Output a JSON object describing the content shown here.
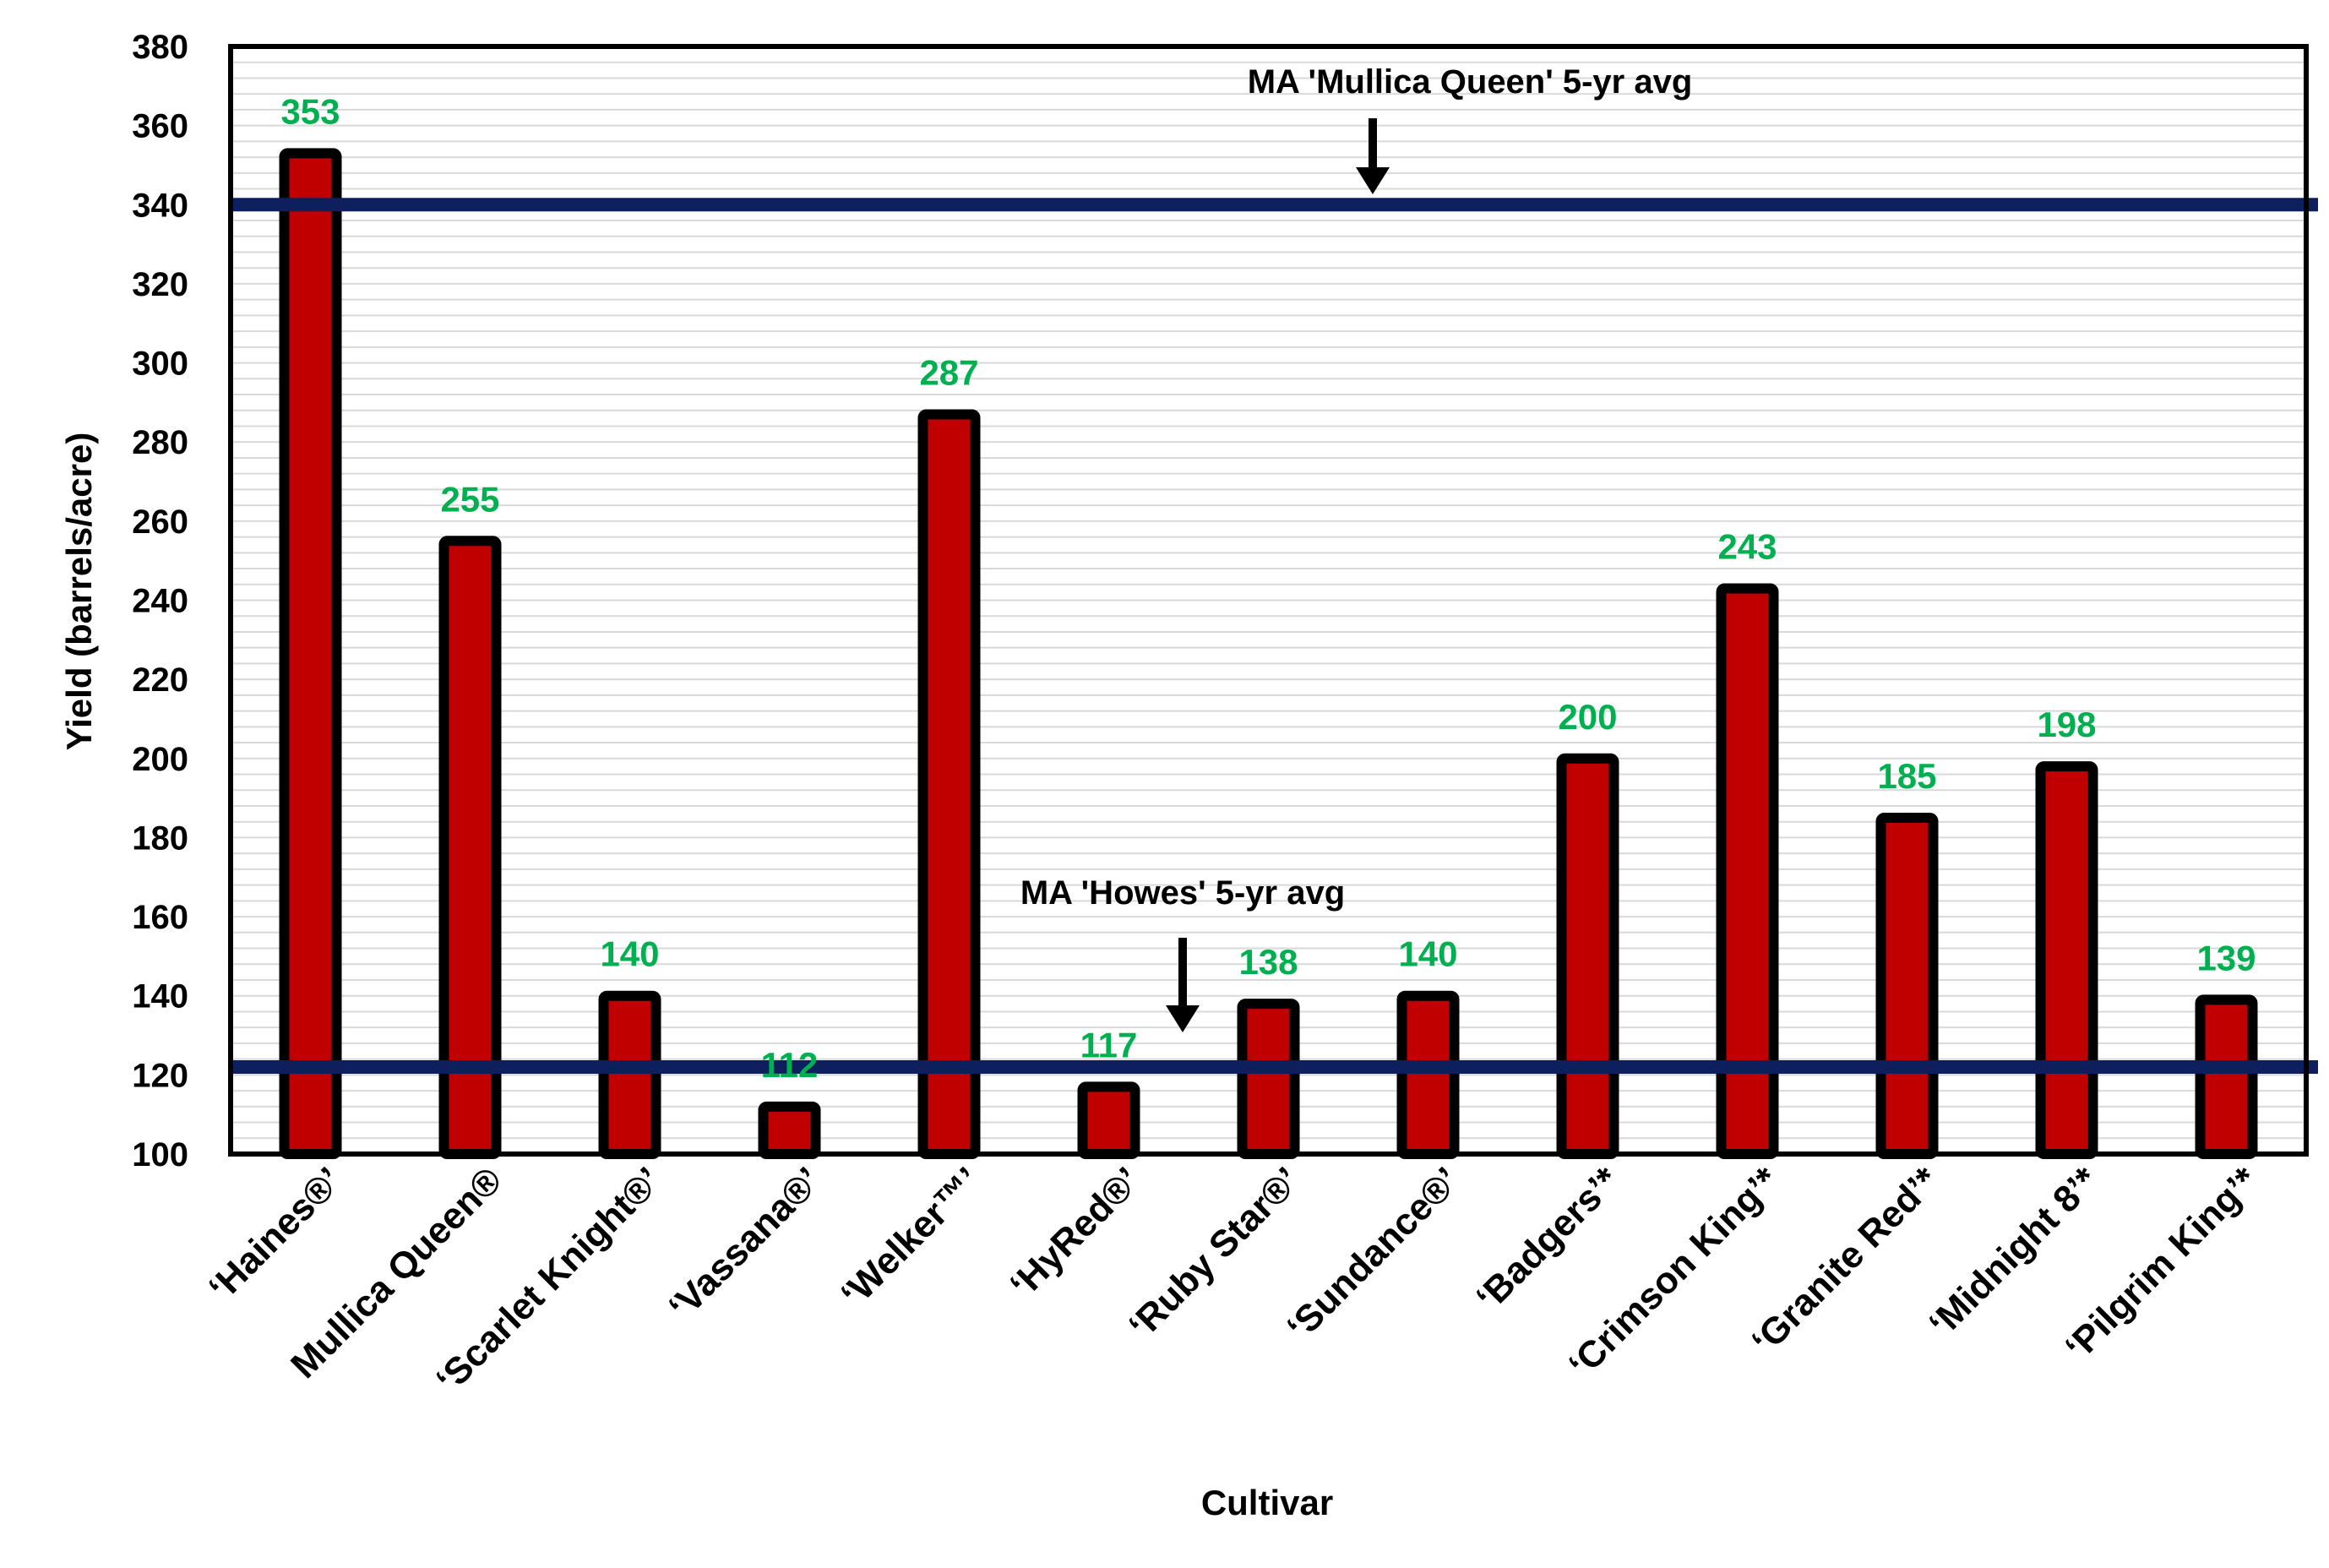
{
  "chart_data": {
    "type": "bar",
    "xlabel": "Cultivar",
    "ylabel": "Yield (barrels/acre)",
    "ylim": [
      100,
      380
    ],
    "yticks": [
      100,
      120,
      140,
      160,
      180,
      200,
      220,
      240,
      260,
      280,
      300,
      320,
      340,
      360,
      380
    ],
    "grid": true,
    "categories": [
      "‘Haines®’",
      "Mullica Queen®",
      "‘Scarlet Knight®’",
      "‘Vassana®’",
      "‘Welker™’",
      "‘HyRed®’",
      "‘Ruby Star®’",
      "‘Sundance®’",
      "‘Badgers’*",
      "‘Crimson King’*",
      "‘Granite Red’*",
      "‘Midnight 8’*",
      "‘Pilgrim King’*"
    ],
    "values": [
      353,
      255,
      140,
      112,
      287,
      117,
      138,
      140,
      200,
      243,
      185,
      198,
      139
    ],
    "data_labels": [
      "353",
      "255",
      "140",
      "112",
      "287",
      "117",
      "138",
      "140",
      "200",
      "243",
      "185",
      "198",
      "139"
    ],
    "reference_lines": [
      {
        "label": "MA 'Mullica Queen' 5-yr avg",
        "value": 340
      },
      {
        "label": "MA 'Howes' 5-yr avg",
        "value": 122
      }
    ],
    "colors": {
      "bar_fill": "#c00000",
      "bar_outline": "#000000",
      "data_label": "#00b050",
      "reference_line": "#0d1f5c",
      "grid": "#d9d9d9"
    }
  }
}
